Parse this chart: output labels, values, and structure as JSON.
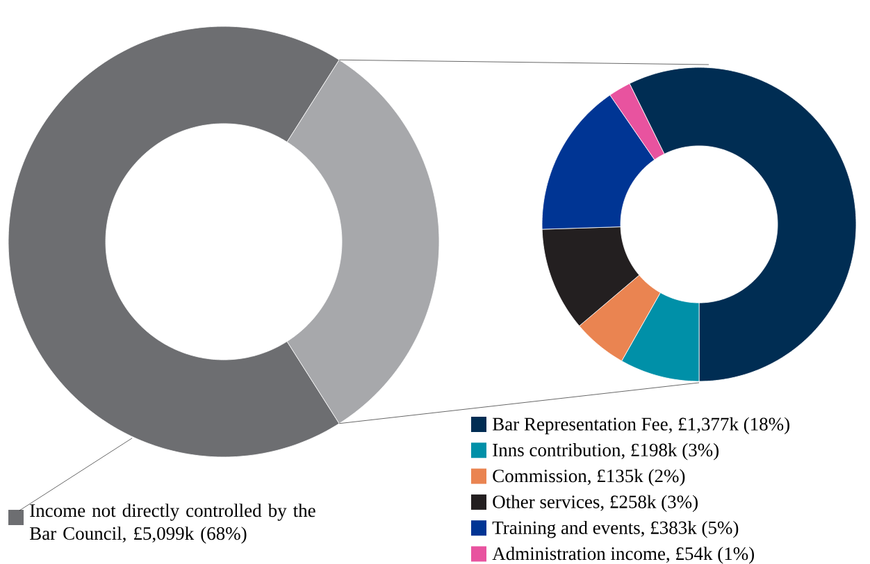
{
  "chart_data": [
    {
      "type": "donut",
      "categories": [
        "Income not directly controlled by the Bar Council, £5,099k (68%)",
        null
      ],
      "values": [
        68,
        32
      ],
      "colors": [
        "#6d6e71",
        "#a7a8ab"
      ],
      "legend": "bottom left"
    },
    {
      "type": "donut",
      "categories": [
        "Bar Representation Fee, £1,377k (18%)",
        "Inns contribution, £198k (3%)",
        "Commission, £135k (2%)",
        "Other services, £258k (3%)",
        "Training and events, £383k (5%)",
        "Administration income, £54k (1%)"
      ],
      "values": [
        57.3,
        8.2,
        5.6,
        10.7,
        15.9,
        2.3
      ],
      "colors": [
        "#002d53",
        "#0090a8",
        "#ea8451",
        "#231f20",
        "#003594",
        "#e8539f"
      ],
      "legend": "bottom"
    }
  ]
}
